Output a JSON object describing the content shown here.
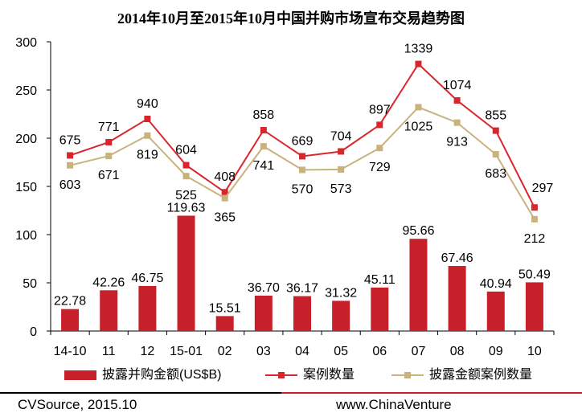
{
  "chart_data": {
    "type": "bar",
    "title": "2014年10月至2015年10月中国并购市场宣布交易趋势图",
    "categories": [
      "14-10",
      "11",
      "12",
      "15-01",
      "02",
      "03",
      "04",
      "05",
      "06",
      "07",
      "08",
      "09",
      "10"
    ],
    "ylim": [
      0,
      300
    ],
    "yticks": [
      0,
      50,
      100,
      150,
      200,
      250,
      300
    ],
    "y2lim": [
      -600,
      1500
    ],
    "y2_axis_visible": false,
    "grid": false,
    "legend": "bottom",
    "series": [
      {
        "name": "披露并购金额(US$B)",
        "type": "bar",
        "axis": "primary",
        "color": "#c8202b",
        "values": [
          22.78,
          42.26,
          46.75,
          119.63,
          15.51,
          36.7,
          36.17,
          31.32,
          45.11,
          95.66,
          67.46,
          40.94,
          50.49
        ]
      },
      {
        "name": "案例数量",
        "type": "line",
        "axis": "secondary",
        "marker": "square",
        "color": "#d8262d",
        "values": [
          675,
          771,
          940,
          604,
          408,
          858,
          669,
          704,
          897,
          1339,
          1074,
          855,
          297
        ]
      },
      {
        "name": "披露金额案例数量",
        "type": "line",
        "axis": "secondary",
        "marker": "square",
        "color": "#c9b27c",
        "values": [
          603,
          671,
          819,
          525,
          365,
          741,
          570,
          573,
          729,
          1025,
          913,
          683,
          212
        ]
      }
    ]
  },
  "footer": {
    "source": "CVSource, 2015.10",
    "site": "www.ChinaVenture",
    "rule_left_color": "#000000",
    "rule_right_color": "#c8202b"
  }
}
